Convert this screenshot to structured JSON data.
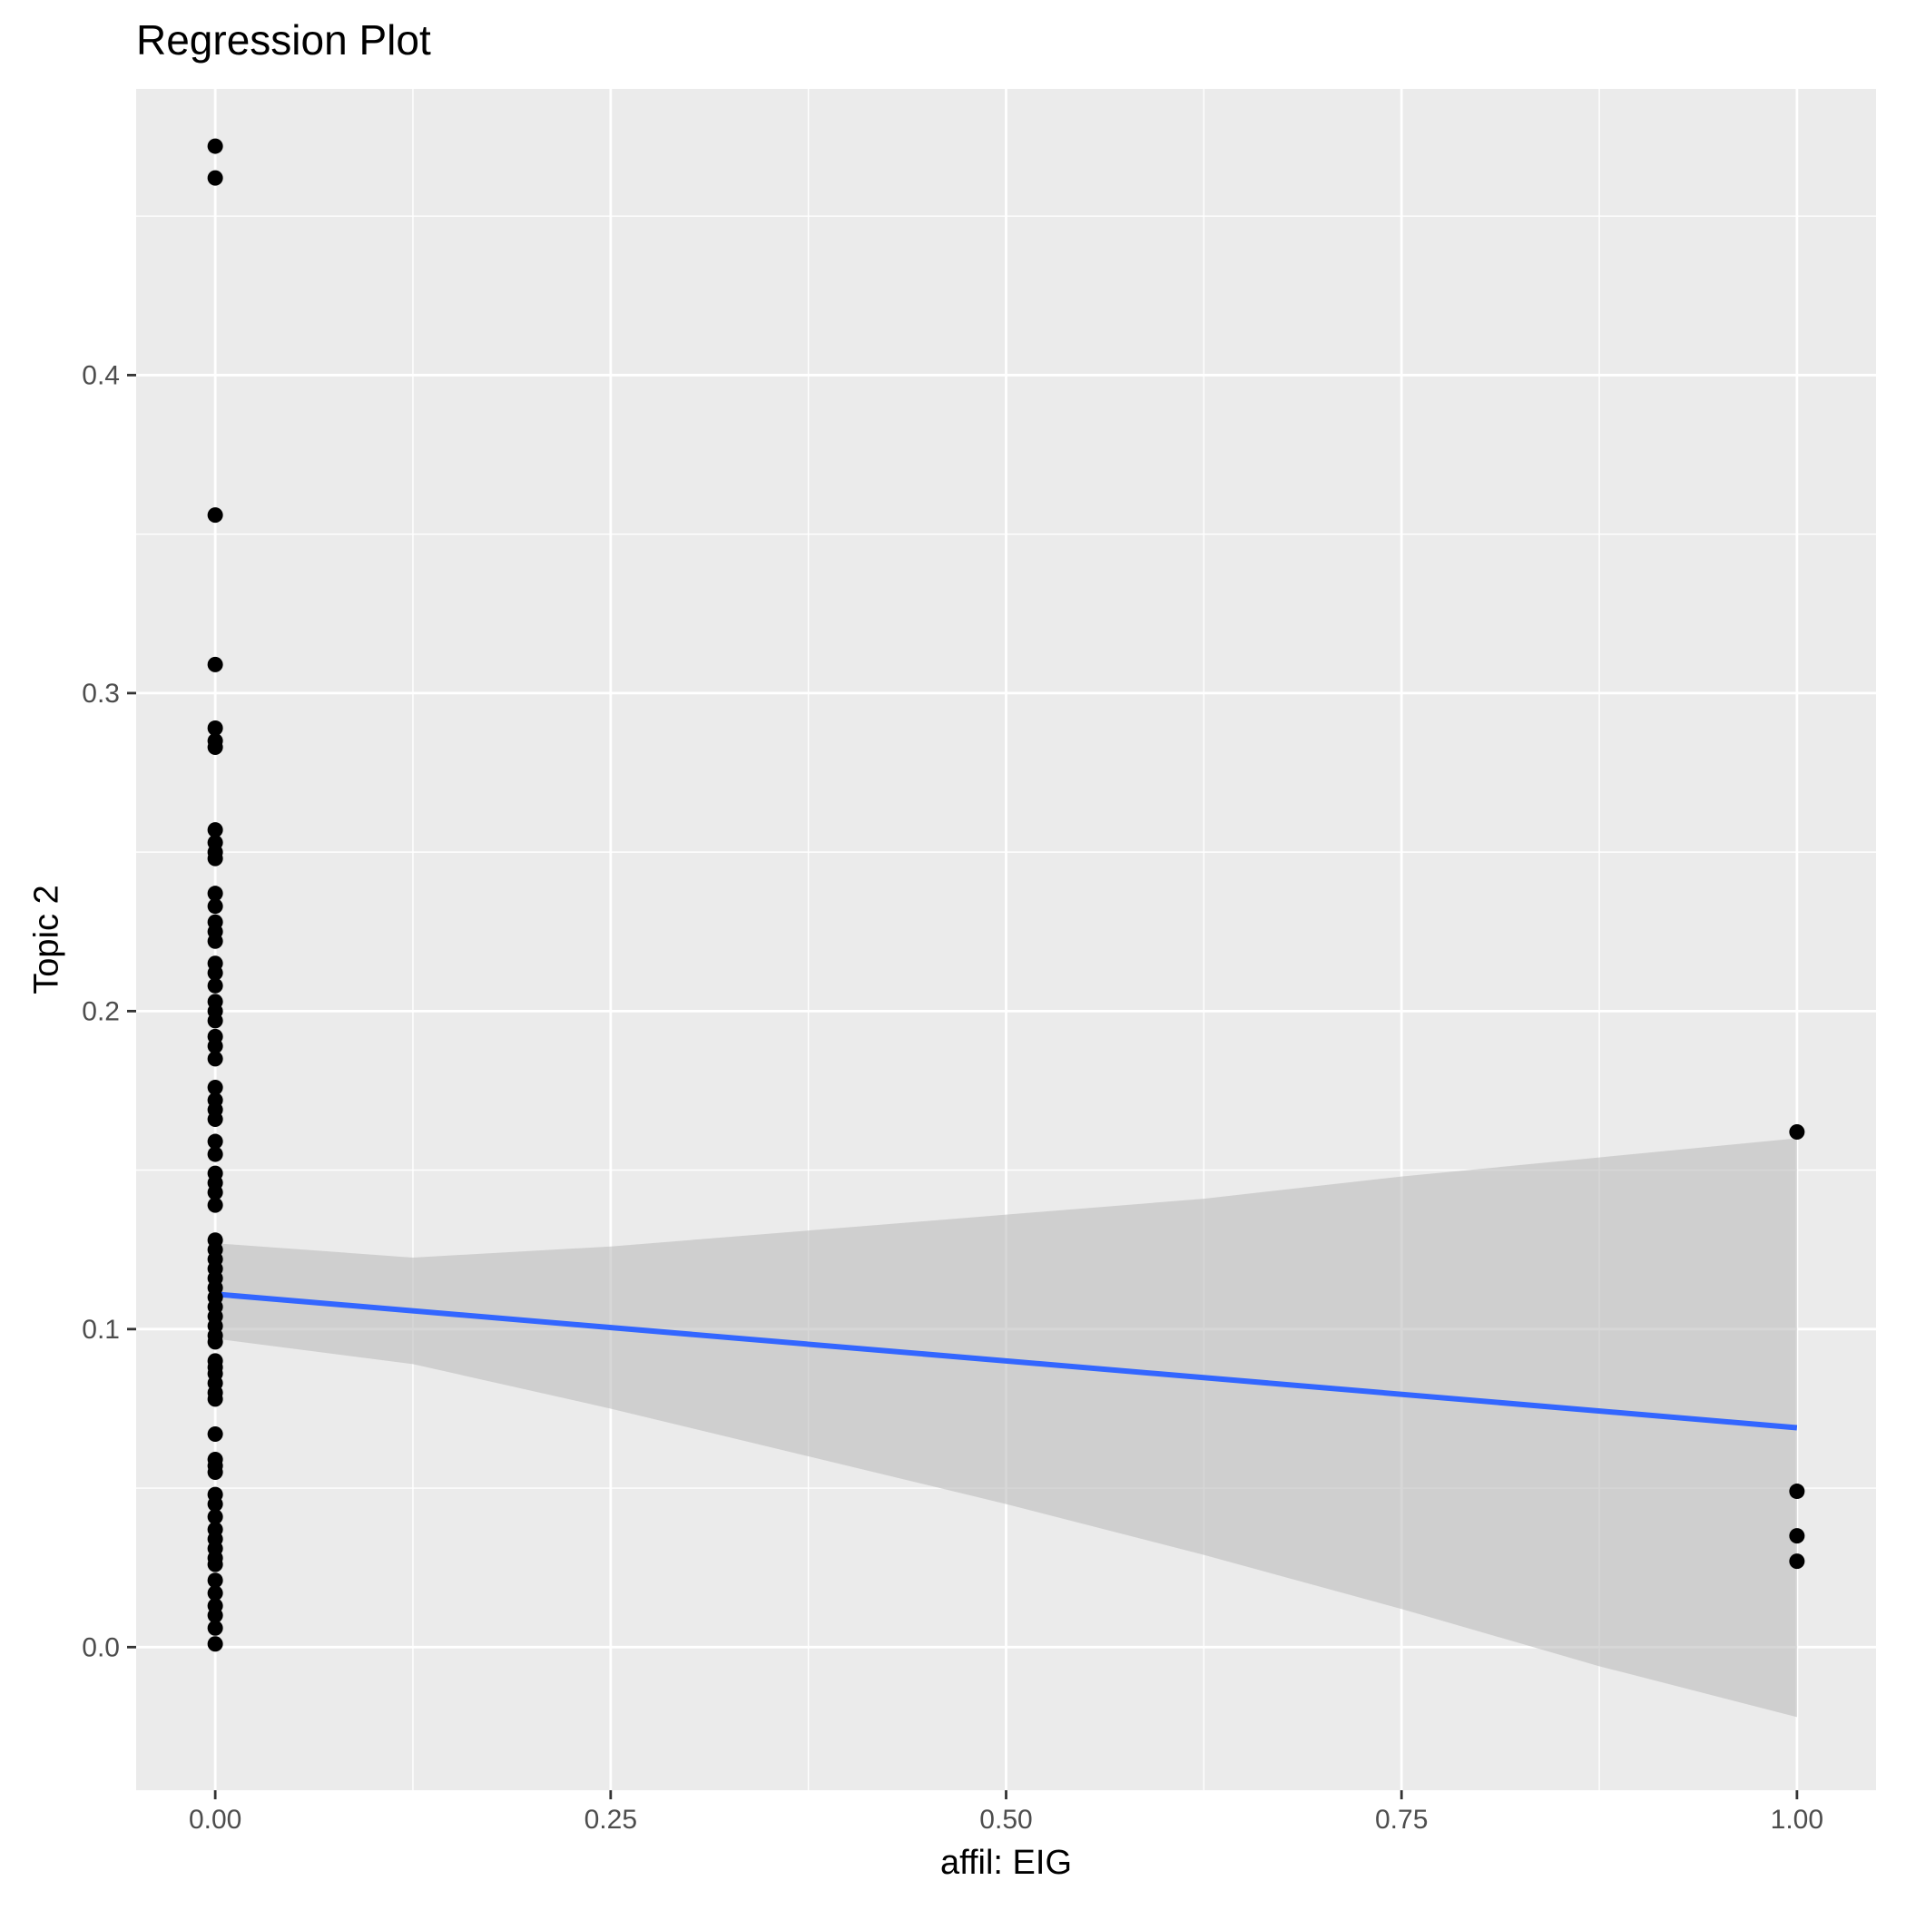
{
  "chart_data": {
    "type": "scatter",
    "title": "Regression Plot",
    "xlabel": "affil: EIG",
    "ylabel": "Topic 2",
    "xlim": [
      -0.05,
      1.05
    ],
    "ylim": [
      -0.045,
      0.49
    ],
    "x_ticks": [
      {
        "value": 0.0,
        "label": "0.00"
      },
      {
        "value": 0.25,
        "label": "0.25"
      },
      {
        "value": 0.5,
        "label": "0.50"
      },
      {
        "value": 0.75,
        "label": "0.75"
      },
      {
        "value": 1.0,
        "label": "1.00"
      }
    ],
    "y_ticks": [
      {
        "value": 0.0,
        "label": "0.0"
      },
      {
        "value": 0.1,
        "label": "0.1"
      },
      {
        "value": 0.2,
        "label": "0.2"
      },
      {
        "value": 0.3,
        "label": "0.3"
      },
      {
        "value": 0.4,
        "label": "0.4"
      }
    ],
    "grid": true,
    "legend": "none",
    "colors": {
      "panel": "#ebebeb",
      "grid": "#ffffff",
      "points": "#000000",
      "line": "#3366ff",
      "band": "#bebebe"
    },
    "points": {
      "x0_values": [
        0.472,
        0.462,
        0.356,
        0.309,
        0.289,
        0.285,
        0.283,
        0.257,
        0.253,
        0.25,
        0.248,
        0.237,
        0.233,
        0.228,
        0.225,
        0.222,
        0.215,
        0.212,
        0.208,
        0.203,
        0.2,
        0.197,
        0.192,
        0.189,
        0.185,
        0.176,
        0.172,
        0.169,
        0.166,
        0.159,
        0.155,
        0.149,
        0.146,
        0.143,
        0.139,
        0.128,
        0.125,
        0.122,
        0.119,
        0.116,
        0.113,
        0.11,
        0.107,
        0.104,
        0.101,
        0.098,
        0.096,
        0.09,
        0.088,
        0.086,
        0.083,
        0.08,
        0.078,
        0.067,
        0.059,
        0.057,
        0.055,
        0.048,
        0.045,
        0.041,
        0.037,
        0.034,
        0.031,
        0.028,
        0.026,
        0.021,
        0.017,
        0.013,
        0.01,
        0.006,
        0.001
      ],
      "x1_values": [
        0.162,
        0.049,
        0.035,
        0.027
      ]
    },
    "regression": {
      "x": [
        0,
        1
      ],
      "y": [
        0.111,
        0.069
      ]
    },
    "confidence_band": {
      "x": [
        0.0,
        0.125,
        0.25,
        0.375,
        0.5,
        0.625,
        0.75,
        0.875,
        1.0
      ],
      "upper": [
        0.127,
        0.1225,
        0.126,
        0.131,
        0.136,
        0.141,
        0.148,
        0.154,
        0.16
      ],
      "lower": [
        0.097,
        0.089,
        0.075,
        0.06,
        0.045,
        0.029,
        0.012,
        -0.006,
        -0.022
      ]
    }
  }
}
